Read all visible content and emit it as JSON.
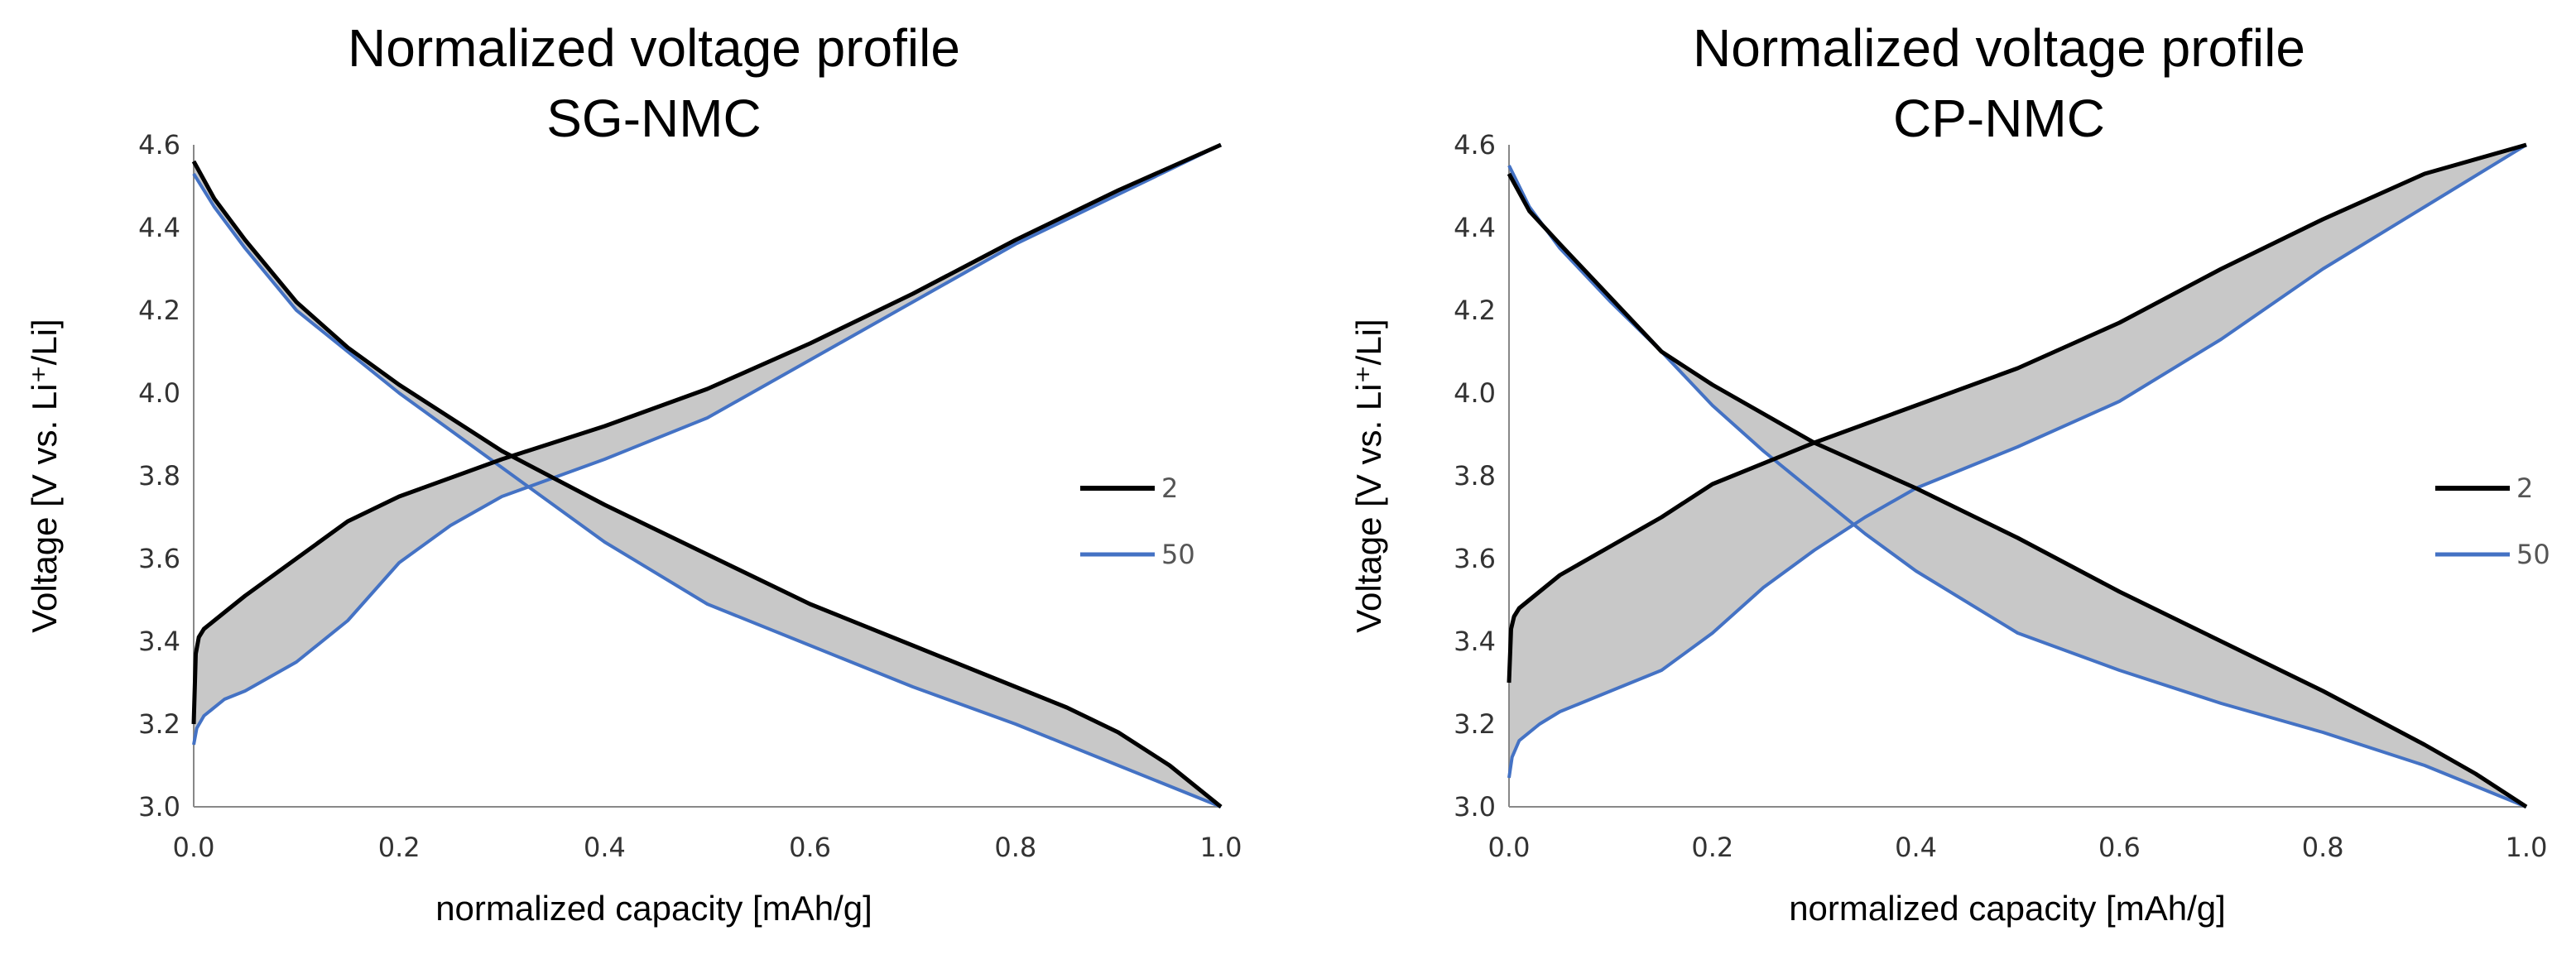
{
  "colors": {
    "series_2": "#000000",
    "series_50": "#4472C4",
    "fill": "#C8C8C8"
  },
  "chart_data": [
    {
      "type": "line",
      "id": "sg",
      "title_line1": "Normalized voltage profile",
      "title_line2": "SG-NMC",
      "xlabel": "normalized capacity [mAh/g]",
      "ylabel": "Voltage [V vs. Li⁺/Li]",
      "xlim": [
        0,
        1
      ],
      "ylim": [
        3.0,
        4.6
      ],
      "xticks": [
        "0.0",
        "0.2",
        "0.4",
        "0.6",
        "0.8",
        "1.0"
      ],
      "yticks": [
        "3.0",
        "3.2",
        "3.4",
        "3.6",
        "3.8",
        "4.0",
        "4.2",
        "4.4",
        "4.6"
      ],
      "legend": [
        {
          "name": "2"
        },
        {
          "name": "50"
        }
      ],
      "series": [
        {
          "name": "2",
          "kind": "charge",
          "x": [
            0,
            0.002,
            0.005,
            0.01,
            0.03,
            0.05,
            0.1,
            0.15,
            0.2,
            0.3,
            0.4,
            0.5,
            0.6,
            0.7,
            0.8,
            0.9,
            1.0
          ],
          "y": [
            3.2,
            3.37,
            3.41,
            3.43,
            3.47,
            3.51,
            3.6,
            3.69,
            3.75,
            3.84,
            3.92,
            4.01,
            4.12,
            4.24,
            4.37,
            4.49,
            4.6
          ]
        },
        {
          "name": "50",
          "kind": "charge",
          "x": [
            0,
            0.003,
            0.01,
            0.03,
            0.05,
            0.1,
            0.15,
            0.2,
            0.25,
            0.3,
            0.4,
            0.5,
            0.6,
            0.7,
            0.8,
            0.9,
            1.0
          ],
          "y": [
            3.15,
            3.19,
            3.22,
            3.26,
            3.28,
            3.35,
            3.45,
            3.59,
            3.68,
            3.75,
            3.84,
            3.94,
            4.08,
            4.22,
            4.36,
            4.48,
            4.6
          ]
        },
        {
          "name": "2",
          "kind": "discharge",
          "x": [
            0,
            0.02,
            0.05,
            0.1,
            0.15,
            0.2,
            0.3,
            0.4,
            0.5,
            0.6,
            0.7,
            0.8,
            0.85,
            0.9,
            0.95,
            0.98,
            1.0
          ],
          "y": [
            4.56,
            4.47,
            4.37,
            4.22,
            4.11,
            4.02,
            3.86,
            3.73,
            3.61,
            3.49,
            3.39,
            3.29,
            3.24,
            3.18,
            3.1,
            3.04,
            3.0
          ]
        },
        {
          "name": "50",
          "kind": "discharge",
          "x": [
            0,
            0.02,
            0.05,
            0.1,
            0.15,
            0.2,
            0.3,
            0.4,
            0.5,
            0.6,
            0.7,
            0.8,
            0.9,
            1.0
          ],
          "y": [
            4.53,
            4.45,
            4.35,
            4.2,
            4.1,
            4.0,
            3.82,
            3.64,
            3.49,
            3.39,
            3.29,
            3.2,
            3.1,
            3.0
          ]
        }
      ]
    },
    {
      "type": "line",
      "id": "cp",
      "title_line1": "Normalized voltage profile",
      "title_line2": "CP-NMC",
      "xlabel": "normalized capacity [mAh/g]",
      "ylabel": "Voltage [V vs. Li⁺/Li]",
      "xlim": [
        0,
        1
      ],
      "ylim": [
        3.0,
        4.6
      ],
      "xticks": [
        "0.0",
        "0.2",
        "0.4",
        "0.6",
        "0.8",
        "1.0"
      ],
      "yticks": [
        "3.0",
        "3.2",
        "3.4",
        "3.6",
        "3.8",
        "4.0",
        "4.2",
        "4.4",
        "4.6"
      ],
      "legend": [
        {
          "name": "2"
        },
        {
          "name": "50"
        }
      ],
      "series": [
        {
          "name": "2",
          "kind": "charge",
          "x": [
            0,
            0.002,
            0.005,
            0.01,
            0.03,
            0.05,
            0.1,
            0.15,
            0.2,
            0.3,
            0.4,
            0.5,
            0.6,
            0.7,
            0.8,
            0.9,
            1.0
          ],
          "y": [
            3.3,
            3.43,
            3.46,
            3.48,
            3.52,
            3.56,
            3.63,
            3.7,
            3.78,
            3.88,
            3.97,
            4.06,
            4.17,
            4.3,
            4.42,
            4.53,
            4.6
          ]
        },
        {
          "name": "50",
          "kind": "charge",
          "x": [
            0,
            0.003,
            0.01,
            0.03,
            0.05,
            0.1,
            0.15,
            0.2,
            0.25,
            0.3,
            0.35,
            0.4,
            0.5,
            0.6,
            0.7,
            0.8,
            0.9,
            1.0
          ],
          "y": [
            3.07,
            3.12,
            3.16,
            3.2,
            3.23,
            3.28,
            3.33,
            3.42,
            3.53,
            3.62,
            3.7,
            3.77,
            3.87,
            3.98,
            4.13,
            4.3,
            4.45,
            4.6
          ]
        },
        {
          "name": "2",
          "kind": "discharge",
          "x": [
            0,
            0.02,
            0.05,
            0.1,
            0.15,
            0.2,
            0.3,
            0.4,
            0.5,
            0.6,
            0.7,
            0.8,
            0.9,
            0.95,
            1.0
          ],
          "y": [
            4.53,
            4.44,
            4.36,
            4.23,
            4.1,
            4.02,
            3.88,
            3.77,
            3.65,
            3.52,
            3.4,
            3.28,
            3.15,
            3.08,
            3.0
          ]
        },
        {
          "name": "50",
          "kind": "discharge",
          "x": [
            0,
            0.02,
            0.05,
            0.1,
            0.15,
            0.2,
            0.25,
            0.3,
            0.35,
            0.4,
            0.5,
            0.6,
            0.7,
            0.8,
            0.9,
            1.0
          ],
          "y": [
            4.55,
            4.45,
            4.35,
            4.22,
            4.1,
            3.97,
            3.86,
            3.76,
            3.66,
            3.57,
            3.42,
            3.33,
            3.25,
            3.18,
            3.1,
            3.0
          ]
        }
      ]
    }
  ]
}
